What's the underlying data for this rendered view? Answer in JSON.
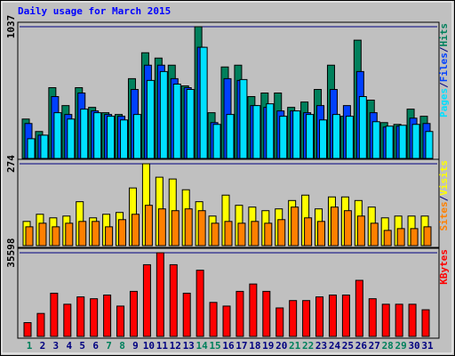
{
  "chart_data": [
    {
      "type": "bar",
      "title": "Daily usage for March 2015",
      "legend_separator": "/",
      "ylim": [
        0,
        1037
      ],
      "yticks": [
        1037
      ],
      "series": [
        {
          "name": "Hits",
          "color": "#00805C",
          "values": [
            310,
            212,
            557,
            416,
            557,
            402,
            360,
            346,
            628,
            832,
            790,
            734,
            571,
            1037,
            360,
            720,
            734,
            487,
            515,
            515,
            402,
            444,
            543,
            734,
            332,
            931,
            459,
            282,
            268,
            388,
            332
          ]
        },
        {
          "name": "Files",
          "color": "#0040FF",
          "values": [
            275,
            183,
            487,
            346,
            515,
            374,
            346,
            332,
            543,
            734,
            734,
            628,
            557,
            875,
            282,
            628,
            614,
            416,
            402,
            374,
            374,
            360,
            416,
            543,
            416,
            684,
            360,
            247,
            254,
            317,
            275
          ]
        },
        {
          "name": "Pages",
          "color": "#00E0FF",
          "values": [
            155,
            183,
            360,
            310,
            388,
            360,
            332,
            303,
            346,
            614,
            684,
            585,
            543,
            875,
            268,
            346,
            621,
            416,
            430,
            332,
            374,
            346,
            303,
            346,
            332,
            487,
            289,
            254,
            261,
            268,
            212
          ]
        }
      ]
    },
    {
      "type": "bar",
      "ylim": [
        0,
        274
      ],
      "yticks": [
        274
      ],
      "series": [
        {
          "name": "Visits",
          "color": "#FFFF00",
          "values": [
            81,
            105,
            93,
            99,
            147,
            93,
            105,
            111,
            193,
            274,
            229,
            223,
            187,
            147,
            99,
            169,
            135,
            129,
            117,
            123,
            151,
            169,
            123,
            163,
            163,
            151,
            129,
            93,
            99,
            99,
            99
          ]
        },
        {
          "name": "Sites",
          "color": "#FF8000",
          "values": [
            63,
            75,
            63,
            75,
            81,
            81,
            63,
            87,
            105,
            135,
            123,
            117,
            123,
            117,
            75,
            81,
            75,
            81,
            75,
            87,
            129,
            93,
            81,
            129,
            117,
            99,
            75,
            51,
            57,
            57,
            63
          ]
        }
      ]
    },
    {
      "type": "bar",
      "ylim": [
        0,
        35598
      ],
      "yticks": [
        35598
      ],
      "categories": [
        "1",
        "2",
        "3",
        "4",
        "5",
        "6",
        "7",
        "8",
        "9",
        "10",
        "11",
        "12",
        "13",
        "14",
        "15",
        "16",
        "17",
        "18",
        "19",
        "20",
        "21",
        "22",
        "23",
        "24",
        "25",
        "26",
        "27",
        "28",
        "29",
        "30",
        "31"
      ],
      "category_colors": [
        "#00805C",
        "#000080",
        "#000080",
        "#000080",
        "#000080",
        "#000080",
        "#00805C",
        "#00805C",
        "#000080",
        "#000080",
        "#000080",
        "#000080",
        "#000080",
        "#00805C",
        "#00805C",
        "#000080",
        "#000080",
        "#000080",
        "#000080",
        "#000080",
        "#00805C",
        "#00805C",
        "#000080",
        "#000080",
        "#000080",
        "#000080",
        "#000080",
        "#00805C",
        "#00805C",
        "#000080",
        "#000080"
      ],
      "series": [
        {
          "name": "KBytes",
          "color": "#FF0000",
          "values": [
            5868,
            9780,
            18386,
            13691,
            16821,
            16039,
            17604,
            12909,
            19168,
            30513,
            35598,
            30513,
            18386,
            28166,
            14474,
            12909,
            19168,
            22298,
            19168,
            12127,
            15256,
            15256,
            16821,
            17604,
            17604,
            23863,
            16039,
            13691,
            13691,
            13691,
            11344
          ]
        }
      ]
    }
  ]
}
